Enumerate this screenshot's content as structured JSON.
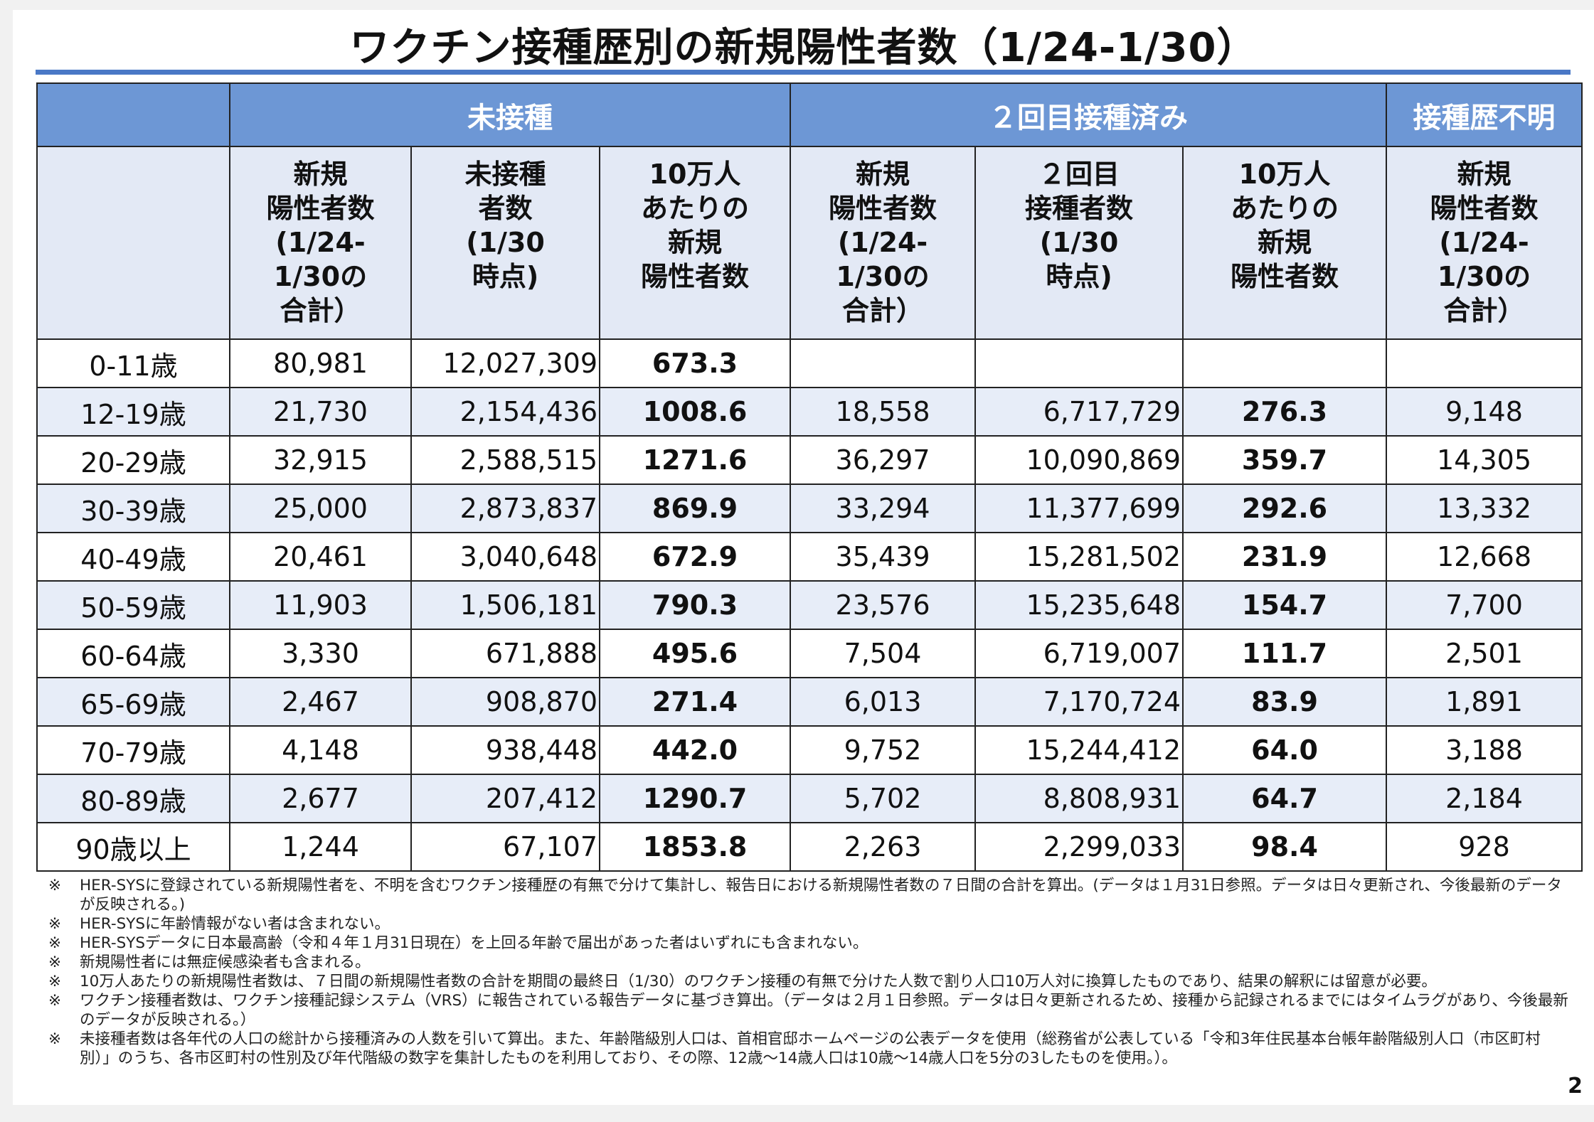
{
  "title": "ワクチン接種歴別の新規陽性者数（1/24-1/30）",
  "colors": {
    "header_blue": "#6d97d5",
    "title_rule": "#4a78c6",
    "row_alt": "#e7edf8",
    "subheader_bg": "#e3e9f5"
  },
  "table": {
    "groups": [
      "未接種",
      "２回目接種済み",
      "接種歴不明"
    ],
    "subheaders": [
      "新規\n陽性者数\n(1/24-\n1/30の\n合計）",
      "未接種\n者数\n(1/30\n時点)",
      "10万人\nあたりの\n新規\n陽性者数",
      "新規\n陽性者数\n(1/24-\n1/30の\n合計）",
      "２回目\n接種者数\n(1/30\n時点)",
      "10万人\nあたりの\n新規\n陽性者数",
      "新規\n陽性者数\n(1/24-\n1/30の\n合計）"
    ],
    "rows": [
      [
        "0-11歳",
        "80,981",
        "12,027,309",
        "673.3",
        "",
        "",
        "",
        ""
      ],
      [
        "12-19歳",
        "21,730",
        "2,154,436",
        "1008.6",
        "18,558",
        "6,717,729",
        "276.3",
        "9,148"
      ],
      [
        "20-29歳",
        "32,915",
        "2,588,515",
        "1271.6",
        "36,297",
        "10,090,869",
        "359.7",
        "14,305"
      ],
      [
        "30-39歳",
        "25,000",
        "2,873,837",
        "869.9",
        "33,294",
        "11,377,699",
        "292.6",
        "13,332"
      ],
      [
        "40-49歳",
        "20,461",
        "3,040,648",
        "672.9",
        "35,439",
        "15,281,502",
        "231.9",
        "12,668"
      ],
      [
        "50-59歳",
        "11,903",
        "1,506,181",
        "790.3",
        "23,576",
        "15,235,648",
        "154.7",
        "7,700"
      ],
      [
        "60-64歳",
        "3,330",
        "671,888",
        "495.6",
        "7,504",
        "6,719,007",
        "111.7",
        "2,501"
      ],
      [
        "65-69歳",
        "2,467",
        "908,870",
        "271.4",
        "6,013",
        "7,170,724",
        "83.9",
        "1,891"
      ],
      [
        "70-79歳",
        "4,148",
        "938,448",
        "442.0",
        "9,752",
        "15,244,412",
        "64.0",
        "3,188"
      ],
      [
        "80-89歳",
        "2,677",
        "207,412",
        "1290.7",
        "5,702",
        "8,808,931",
        "64.7",
        "2,184"
      ],
      [
        "90歳以上",
        "1,244",
        "67,107",
        "1853.8",
        "2,263",
        "2,299,033",
        "98.4",
        "928"
      ]
    ]
  },
  "notes": [
    "HER-SYSに登録されている新規陽性者を、不明を含むワクチン接種歴の有無で分けて集計し、報告日における新規陽性者数の７日間の合計を算出。(データは１月31日参照。データは日々更新され、今後最新のデータが反映される。)",
    "HER-SYSに年齢情報がない者は含まれない。",
    "HER-SYSデータに日本最高齢（令和４年１月31日現在）を上回る年齢で届出があった者はいずれにも含まれない。",
    "新規陽性者には無症候感染者も含まれる。",
    "10万人あたりの新規陽性者数は、７日間の新規陽性者数の合計を期間の最終日（1/30）のワクチン接種の有無で分けた人数で割り人口10万人対に換算したものであり、結果の解釈には留意が必要。",
    "ワクチン接種者数は、ワクチン接種記録システム（VRS）に報告されている報告データに基づき算出。（データは２月１日参照。データは日々更新されるため、接種から記録されるまでにはタイムラグがあり、今後最新のデータが反映される。）",
    "未接種者数は各年代の人口の総計から接種済みの人数を引いて算出。また、年齢階級別人口は、首相官邸ホームページの公表データを使用（総務省が公表している「令和3年住民基本台帳年齢階級別人口（市区町村別）」のうち、各市区町村の性別及び年代階級の数字を集計したものを利用しており、その際、12歳～14歳人口は10歳～14歳人口を5分の3したものを使用。）。"
  ],
  "note_mark": "※",
  "page_number": "2"
}
